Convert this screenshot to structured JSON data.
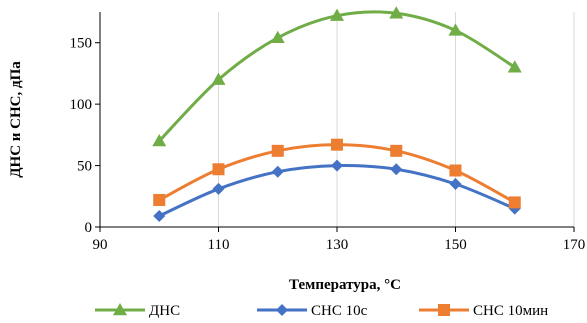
{
  "chart_data": {
    "type": "line",
    "title": "",
    "xlabel": "Температура, °C",
    "ylabel": "ДНС и СНС, дПа",
    "xlim": [
      90,
      170
    ],
    "ylim": [
      0,
      175
    ],
    "x_ticks": [
      "90",
      "110",
      "130",
      "150",
      "170"
    ],
    "y_ticks": [
      "0",
      "50",
      "100",
      "150"
    ],
    "grid": "vertical",
    "legend_position": "bottom",
    "smooth": true,
    "x": [
      100,
      110,
      120,
      130,
      140,
      150,
      160
    ],
    "series": [
      {
        "name": "ДНС",
        "color": "#70ad47",
        "marker": "triangle",
        "values": [
          70,
          120,
          154,
          172,
          174,
          160,
          130
        ]
      },
      {
        "name": "СНС 10с",
        "color": "#4472c4",
        "marker": "diamond",
        "values": [
          9,
          31,
          45,
          50,
          47,
          35,
          15
        ]
      },
      {
        "name": "СНС 10мин",
        "color": "#ed7d31",
        "marker": "square",
        "values": [
          22,
          47,
          62,
          67,
          62,
          46,
          20
        ]
      }
    ]
  }
}
